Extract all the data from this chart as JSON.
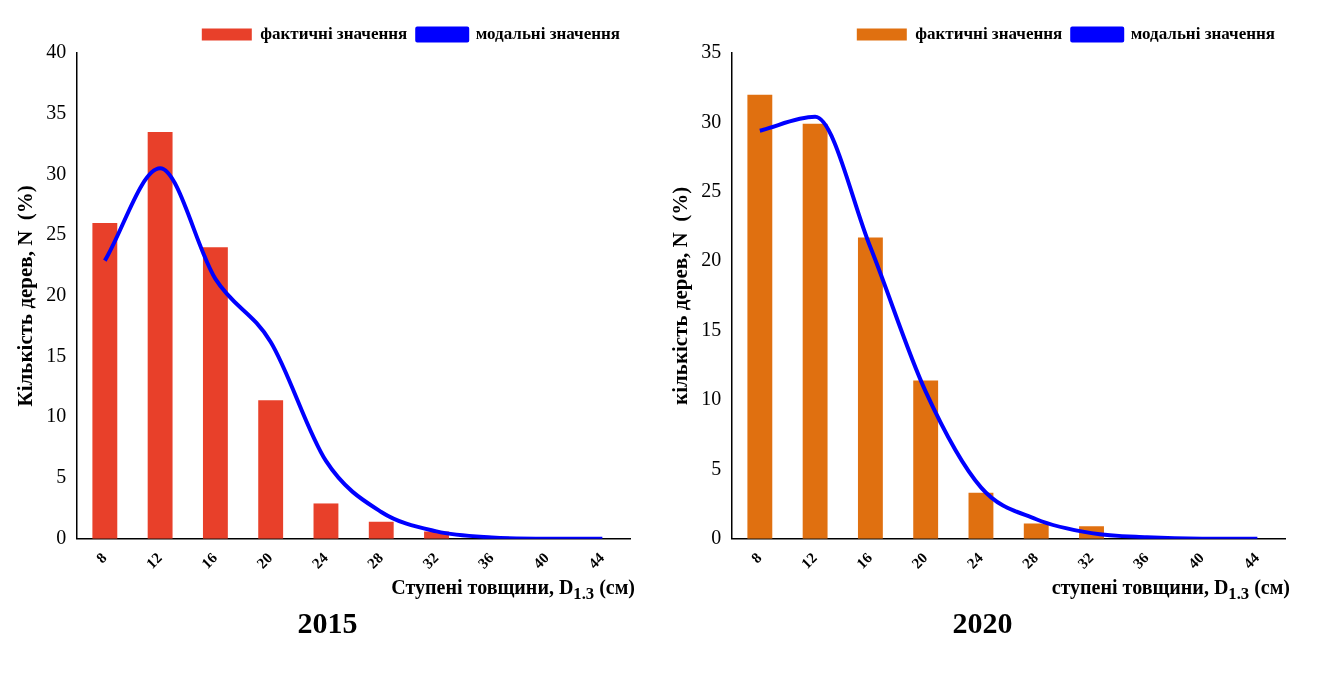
{
  "chart_data": [
    {
      "type": "bar",
      "title": "2015",
      "xlabel": "Ступені товщини, D$_{1.3}$ (см)",
      "ylabel": "Кількість дерев, N  (%)",
      "categories": [
        "8",
        "12",
        "16",
        "20",
        "24",
        "28",
        "32",
        "36",
        "40",
        "44"
      ],
      "series": [
        {
          "name": "фактичні значення",
          "color": "#e8402a",
          "values": [
            26.0,
            33.5,
            24.0,
            11.4,
            2.9,
            1.4,
            0.6,
            0,
            0,
            0
          ]
        },
        {
          "name": "модальні значення",
          "type": "line",
          "color": "#0000ff",
          "values": [
            22.9,
            30.5,
            21.4,
            16.2,
            6.4,
            2.2,
            0.6,
            0.1,
            0,
            0
          ]
        }
      ],
      "ylim": [
        0,
        40
      ],
      "yticks": [
        0,
        5,
        10,
        15,
        20,
        25,
        30,
        35,
        40
      ],
      "grid": false,
      "legend": "top right",
      "marker": "none"
    },
    {
      "type": "bar",
      "title": "2020",
      "xlabel": "ступені товщини, D$_{1.3}$ (см)",
      "ylabel": "кількість дерев, N  (%)",
      "categories": [
        "8",
        "12",
        "16",
        "20",
        "24",
        "28",
        "32",
        "36",
        "40",
        "44"
      ],
      "series": [
        {
          "name": "фактичні значення",
          "color": "#e07010",
          "values": [
            32.0,
            29.9,
            21.7,
            11.4,
            3.3,
            1.1,
            0.9,
            0,
            0,
            0
          ]
        },
        {
          "name": "модальні значення",
          "type": "line",
          "color": "#0000ff",
          "values": [
            29.4,
            30.4,
            21.0,
            10.6,
            3.7,
            1.4,
            0.4,
            0.1,
            0,
            0
          ]
        }
      ],
      "ylim": [
        0,
        35
      ],
      "yticks": [
        0,
        5,
        10,
        15,
        20,
        25,
        30,
        35
      ],
      "grid": false,
      "legend": "top right",
      "marker": "none"
    }
  ]
}
